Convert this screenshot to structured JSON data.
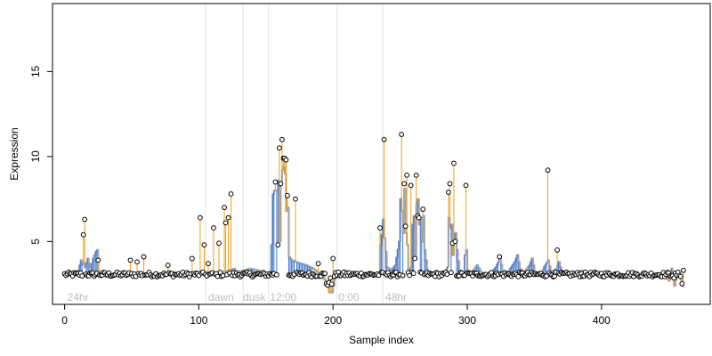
{
  "chart_data": {
    "type": "scatter",
    "title": "",
    "xlabel": "Sample index",
    "ylabel": "Expression",
    "xlim": [
      -9,
      481
    ],
    "ylim": [
      1.3,
      19.0
    ],
    "x_ticks": [
      0,
      100,
      200,
      300,
      400
    ],
    "y_ticks": [
      5,
      10,
      15
    ],
    "colors": {
      "above_stem": "#F39C12",
      "below_stem": "#3C78D8",
      "smooth_line": "#A6A6A6",
      "boundary": "#E3E3E3",
      "region_label": "#BDBDBD",
      "point_stroke": "#000000",
      "point_fill": "#FFFFFF"
    },
    "region_boundaries": [
      105,
      133,
      152,
      203,
      237
    ],
    "region_labels": [
      {
        "label": "24hr",
        "x": 2
      },
      {
        "label": "dawn",
        "x": 107
      },
      {
        "label": "dusk",
        "x": 133
      },
      {
        "label": "12:00",
        "x": 153
      },
      {
        "label": "0:00",
        "x": 204
      },
      {
        "label": "48hr",
        "x": 239
      }
    ],
    "highlight_points": [
      [
        14,
        5.4
      ],
      [
        15,
        6.3
      ],
      [
        25,
        3.9
      ],
      [
        49,
        3.9
      ],
      [
        54,
        3.8
      ],
      [
        59,
        4.1
      ],
      [
        77,
        3.6
      ],
      [
        95,
        4.0
      ],
      [
        101,
        6.4
      ],
      [
        104,
        4.8
      ],
      [
        107,
        3.7
      ],
      [
        111,
        5.8
      ],
      [
        115,
        4.9
      ],
      [
        119,
        7.0
      ],
      [
        120,
        6.1
      ],
      [
        122,
        6.4
      ],
      [
        124,
        7.8
      ],
      [
        157,
        8.5
      ],
      [
        159,
        4.8
      ],
      [
        160,
        10.5
      ],
      [
        161,
        8.4
      ],
      [
        162,
        11.0
      ],
      [
        163,
        9.9
      ],
      [
        164,
        9.9
      ],
      [
        165,
        9.8
      ],
      [
        166,
        7.7
      ],
      [
        172,
        7.5
      ],
      [
        189,
        3.7
      ],
      [
        200,
        4.0
      ],
      [
        235,
        5.8
      ],
      [
        238,
        11.0
      ],
      [
        251,
        11.3
      ],
      [
        253,
        8.4
      ],
      [
        254,
        5.9
      ],
      [
        255,
        8.9
      ],
      [
        258,
        8.3
      ],
      [
        261,
        4.0
      ],
      [
        262,
        8.9
      ],
      [
        263,
        6.5
      ],
      [
        264,
        6.4
      ],
      [
        267,
        6.9
      ],
      [
        286,
        7.9
      ],
      [
        287,
        8.4
      ],
      [
        289,
        4.9
      ],
      [
        290,
        9.6
      ],
      [
        291,
        5.0
      ],
      [
        299,
        8.3
      ],
      [
        324,
        4.1
      ],
      [
        360,
        9.2
      ],
      [
        367,
        4.5
      ],
      [
        461,
        3.3
      ]
    ]
  }
}
